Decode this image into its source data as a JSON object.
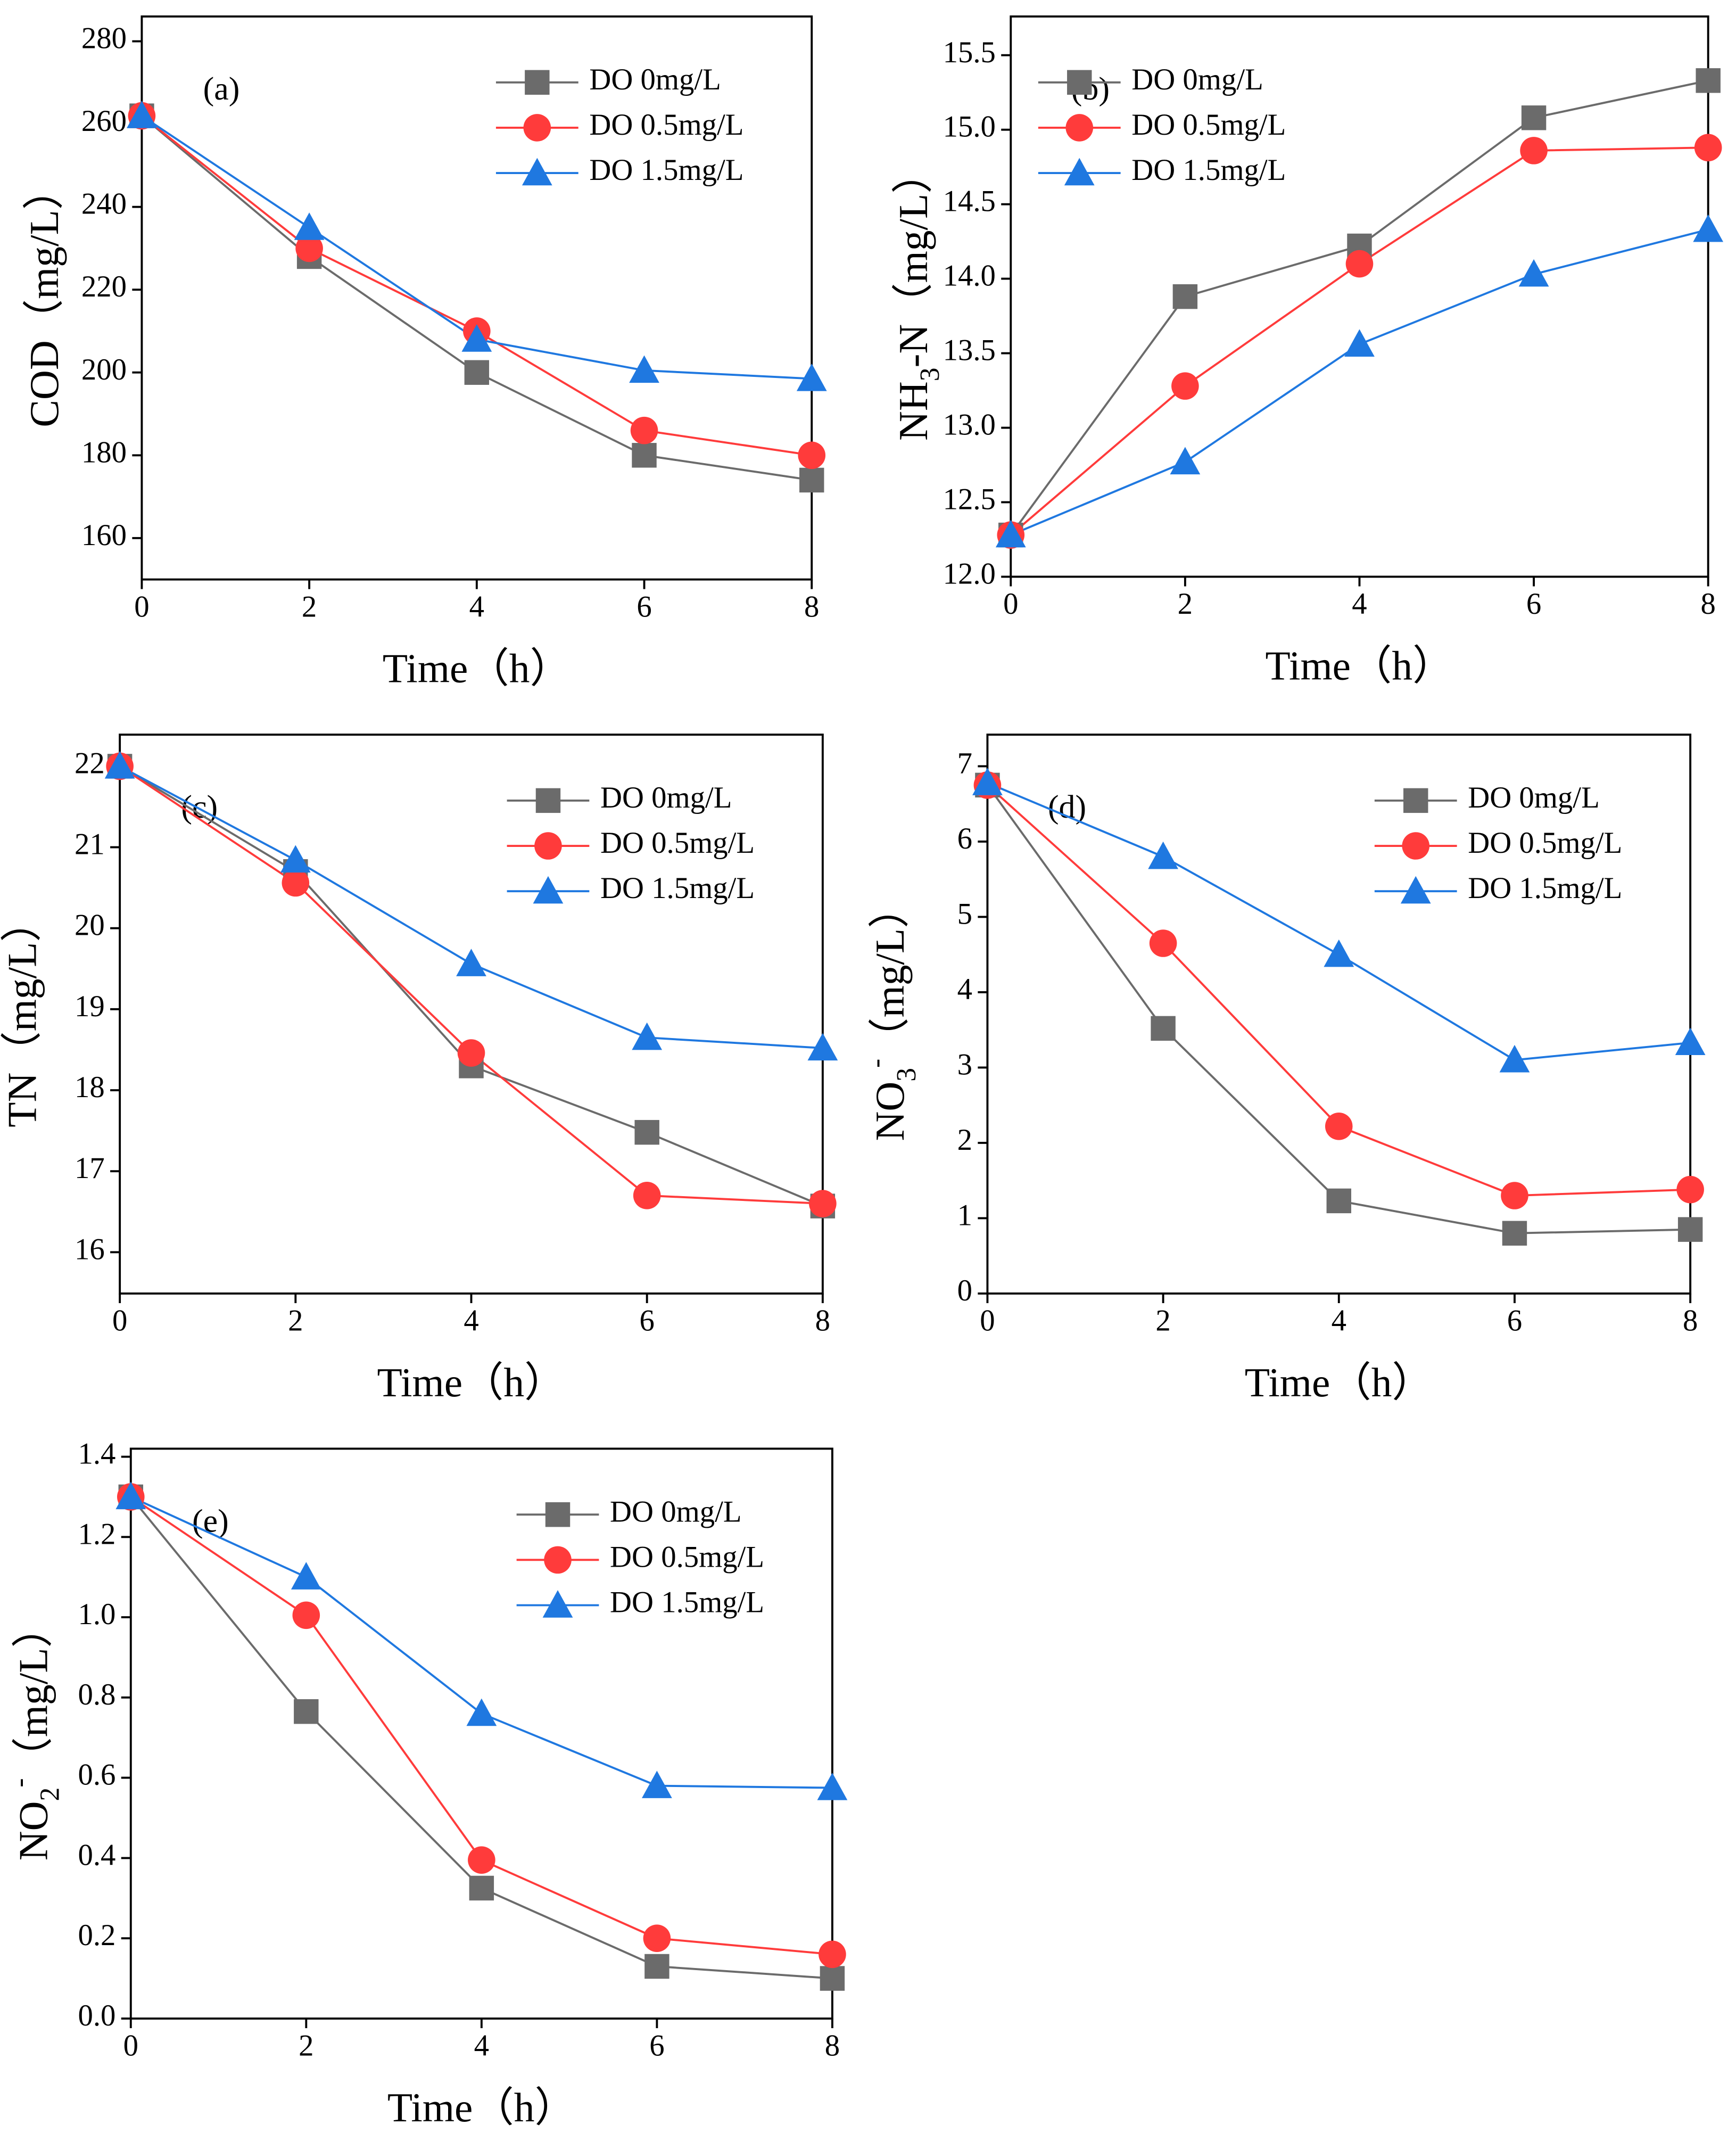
{
  "chart_data": [
    {
      "type": "line",
      "panel": "(a)",
      "xlabel": "Time（h）",
      "ylabel": [
        {
          "text": "COD（mg/L）"
        }
      ],
      "x": [
        0,
        2,
        4,
        6,
        8
      ],
      "xlim": [
        0,
        8
      ],
      "xticks": [
        0,
        2,
        4,
        6,
        8
      ],
      "ylim": [
        150,
        286
      ],
      "yticks": [
        160,
        180,
        200,
        220,
        240,
        260,
        280
      ],
      "legend": "upper right",
      "series": [
        {
          "name": "DO 0mg/L",
          "color": "#6b6b6b",
          "marker": "square",
          "values": [
            262,
            228,
            200,
            180,
            174
          ]
        },
        {
          "name": "DO 0.5mg/L",
          "color": "#ff3b3b",
          "marker": "circle",
          "values": [
            262,
            230,
            210,
            186,
            180
          ]
        },
        {
          "name": "DO 1.5mg/L",
          "color": "#1f78e0",
          "marker": "triangle",
          "values": [
            262,
            235,
            208,
            200.5,
            198.5
          ]
        }
      ]
    },
    {
      "type": "line",
      "panel": "(b)",
      "xlabel": "Time（h）",
      "ylabel": [
        {
          "text": "NH"
        },
        {
          "sub": "3"
        },
        {
          "text": "-N（mg/L）"
        }
      ],
      "x": [
        0,
        2,
        4,
        6,
        8
      ],
      "xlim": [
        0,
        8
      ],
      "xticks": [
        0,
        2,
        4,
        6,
        8
      ],
      "ylim": [
        12,
        15.76
      ],
      "yticks": [
        {
          "value": 12,
          "label": "12.0"
        },
        12.5,
        {
          "value": 13,
          "label": "13.0"
        },
        13.5,
        {
          "value": 14,
          "label": "14.0"
        },
        14.5,
        {
          "value": 15,
          "label": "15.0"
        },
        15.5
      ],
      "legend": "upper left",
      "series": [
        {
          "name": "DO 0mg/L",
          "color": "#6b6b6b",
          "marker": "square",
          "values": [
            12.28,
            13.88,
            14.22,
            15.08,
            15.33
          ]
        },
        {
          "name": "DO 0.5mg/L",
          "color": "#ff3b3b",
          "marker": "circle",
          "values": [
            12.28,
            13.28,
            14.1,
            14.86,
            14.88
          ]
        },
        {
          "name": "DO 1.5mg/L",
          "color": "#1f78e0",
          "marker": "triangle",
          "values": [
            12.28,
            12.77,
            13.56,
            14.03,
            14.33
          ]
        }
      ]
    },
    {
      "type": "line",
      "panel": "(c)",
      "xlabel": "Time（h）",
      "ylabel": [
        {
          "text": "TN（mg/L）"
        }
      ],
      "x": [
        0,
        2,
        4,
        6,
        8
      ],
      "xlim": [
        0,
        8
      ],
      "xticks": [
        0,
        2,
        4,
        6,
        8
      ],
      "ylim": [
        15.49,
        22.39
      ],
      "yticks": [
        16,
        17,
        18,
        19,
        20,
        21,
        22
      ],
      "legend": "upper right",
      "series": [
        {
          "name": "DO 0mg/L",
          "color": "#6b6b6b",
          "marker": "square",
          "values": [
            22,
            20.7,
            18.3,
            17.48,
            16.57
          ]
        },
        {
          "name": "DO 0.5mg/L",
          "color": "#ff3b3b",
          "marker": "circle",
          "values": [
            22,
            20.56,
            18.46,
            16.7,
            16.6
          ]
        },
        {
          "name": "DO 1.5mg/L",
          "color": "#1f78e0",
          "marker": "triangle",
          "values": [
            22,
            20.84,
            19.56,
            18.65,
            18.52
          ]
        }
      ]
    },
    {
      "type": "line",
      "panel": "(d)",
      "xlabel": "Time（h）",
      "ylabel": [
        {
          "text": "NO"
        },
        {
          "sub": "3"
        },
        {
          "sup": "-"
        },
        {
          "text": "（mg/L）"
        }
      ],
      "x": [
        0,
        2,
        4,
        6,
        8
      ],
      "xlim": [
        0,
        8
      ],
      "xticks": [
        0,
        2,
        4,
        6,
        8
      ],
      "ylim": [
        0,
        7.42
      ],
      "yticks": [
        0,
        1,
        2,
        3,
        4,
        5,
        6,
        7
      ],
      "legend": "upper right",
      "series": [
        {
          "name": "DO 0mg/L",
          "color": "#6b6b6b",
          "marker": "square",
          "values": [
            6.75,
            3.52,
            1.23,
            0.8,
            0.85
          ]
        },
        {
          "name": "DO 0.5mg/L",
          "color": "#ff3b3b",
          "marker": "circle",
          "values": [
            6.75,
            4.65,
            2.22,
            1.3,
            1.38
          ]
        },
        {
          "name": "DO 1.5mg/L",
          "color": "#1f78e0",
          "marker": "triangle",
          "values": [
            6.78,
            5.8,
            4.5,
            3.1,
            3.33
          ]
        }
      ]
    },
    {
      "type": "line",
      "panel": "(e)",
      "xlabel": "Time（h）",
      "ylabel": [
        {
          "text": "NO"
        },
        {
          "sub": "2"
        },
        {
          "sup": "-"
        },
        {
          "text": "（mg/L）"
        }
      ],
      "x": [
        0,
        2,
        4,
        6,
        8
      ],
      "xlim": [
        0,
        8
      ],
      "xticks": [
        0,
        2,
        4,
        6,
        8
      ],
      "ylim": [
        0,
        1.42
      ],
      "yticks": [
        {
          "value": 0,
          "label": "0.0"
        },
        0.2,
        0.4,
        0.6,
        0.8,
        {
          "value": 1,
          "label": "1.0"
        },
        1.2,
        1.4
      ],
      "legend": "upper right",
      "series": [
        {
          "name": "DO 0mg/L",
          "color": "#6b6b6b",
          "marker": "square",
          "values": [
            1.3,
            0.765,
            0.325,
            0.13,
            0.1
          ]
        },
        {
          "name": "DO 0.5mg/L",
          "color": "#ff3b3b",
          "marker": "circle",
          "values": [
            1.3,
            1.005,
            0.395,
            0.2,
            0.16
          ]
        },
        {
          "name": "DO 1.5mg/L",
          "color": "#1f78e0",
          "marker": "triangle",
          "values": [
            1.3,
            1.1,
            0.76,
            0.58,
            0.575
          ]
        }
      ]
    }
  ]
}
